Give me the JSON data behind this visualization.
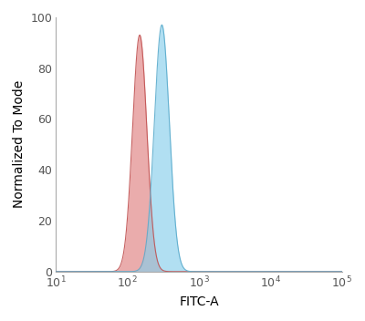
{
  "title": "",
  "xlabel": "FITC-A",
  "ylabel": "Normalized To Mode",
  "xlim_log": [
    1,
    5
  ],
  "ylim": [
    0,
    100
  ],
  "yticks": [
    0,
    20,
    40,
    60,
    80,
    100
  ],
  "xtick_positions": [
    1,
    2,
    3,
    4,
    5
  ],
  "red_peak_log": 2.17,
  "red_sigma_log": 0.1,
  "red_max": 93,
  "blue_peak_log": 2.48,
  "blue_sigma_log": 0.105,
  "blue_max": 97,
  "red_fill_color": "#E08080",
  "red_edge_color": "#C05050",
  "blue_fill_color": "#87CEEB",
  "blue_edge_color": "#5AABCC",
  "fill_alpha": 0.65,
  "background_color": "#FFFFFF",
  "label_fontsize": 10,
  "tick_fontsize": 9,
  "figure_facecolor": "#FFFFFF",
  "spine_color": "#AAAAAA",
  "spine_linewidth": 0.8
}
